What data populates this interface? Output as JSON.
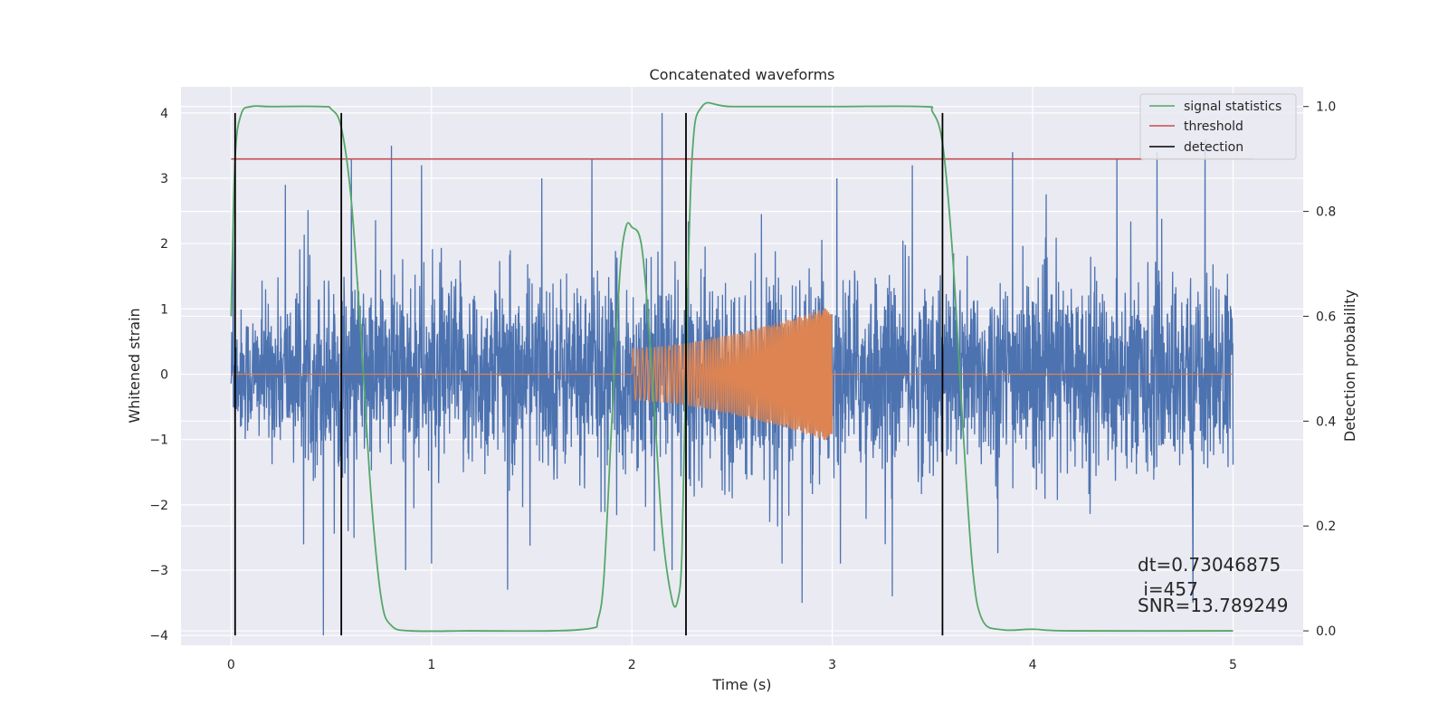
{
  "chart_data": {
    "type": "line",
    "title": "Concatenated waveforms",
    "xlabel": "Time (s)",
    "ylabel": "Whitened strain",
    "y2label": "Detection probability",
    "xlim": [
      -0.25,
      5.35
    ],
    "ylim": [
      -4.15,
      4.4
    ],
    "y2lim": [
      -0.0275,
      1.0375
    ],
    "x_ticks": [
      0,
      1,
      2,
      3,
      4,
      5
    ],
    "x_tick_labels": [
      "0",
      "1",
      "2",
      "3",
      "4",
      "5"
    ],
    "y_ticks": [
      -4,
      -3,
      -2,
      -1,
      0,
      1,
      2,
      3,
      4
    ],
    "y_tick_labels": [
      "−4",
      "−3",
      "−2",
      "−1",
      "0",
      "1",
      "2",
      "3",
      "4"
    ],
    "y2_ticks": [
      0.0,
      0.2,
      0.4,
      0.6,
      0.8,
      1.0
    ],
    "y2_tick_labels": [
      "0.0",
      "0.2",
      "0.4",
      "0.6",
      "0.8",
      "1.0"
    ],
    "grid": true,
    "legend_position": "top-right",
    "colors": {
      "background": "#eaeaf2",
      "grid": "#ffffff",
      "strain": "#4c72b0",
      "template": "#dd8452",
      "signal_statistics": "#55a868",
      "threshold": "#c44e52",
      "detection": "#000000"
    },
    "series": [
      {
        "key": "strain",
        "axis": "left",
        "range": [
          0,
          5
        ],
        "envelope_points": [
          [
            0,
            0.9
          ],
          [
            0.5,
            1.4
          ],
          [
            1,
            1.4
          ],
          [
            1.5,
            1.4
          ],
          [
            2,
            1.4
          ],
          [
            2.5,
            1.4
          ],
          [
            3,
            1.4
          ],
          [
            3.5,
            1.4
          ],
          [
            4,
            1.4
          ],
          [
            4.5,
            1.4
          ],
          [
            5,
            1.4
          ]
        ],
        "peaks": [
          [
            0.01,
            2.25
          ],
          [
            0.27,
            2.9
          ],
          [
            0.46,
            -4.0
          ],
          [
            0.6,
            3.3
          ],
          [
            0.8,
            3.5
          ],
          [
            0.95,
            3.2
          ],
          [
            1.0,
            -2.9
          ],
          [
            1.38,
            -3.3
          ],
          [
            1.55,
            3.0
          ],
          [
            1.8,
            3.3
          ],
          [
            2.15,
            4.0
          ],
          [
            2.2,
            -3.0
          ],
          [
            2.75,
            -2.9
          ],
          [
            2.85,
            -3.5
          ],
          [
            3.04,
            -2.9
          ],
          [
            3.3,
            -3.4
          ],
          [
            3.4,
            3.2
          ],
          [
            3.9,
            3.4
          ],
          [
            4.42,
            3.3
          ],
          [
            4.62,
            3.4
          ],
          [
            4.8,
            -3.5
          ],
          [
            4.86,
            3.6
          ]
        ]
      },
      {
        "key": "template",
        "axis": "left",
        "range": [
          0,
          5
        ],
        "chirp_start": 2.0,
        "chirp_end": 3.0,
        "amplitude_start": 0.4,
        "amplitude_end": 1.05
      },
      {
        "name": "signal statistics",
        "key": "signal_statistics",
        "axis": "right",
        "x": [
          0,
          0.02,
          0.05,
          0.1,
          0.2,
          0.45,
          0.5,
          0.55,
          0.6,
          0.65,
          0.7,
          0.75,
          0.8,
          0.9,
          1.2,
          1.6,
          1.8,
          1.83,
          1.86,
          1.9,
          1.94,
          1.97,
          2.0,
          2.05,
          2.1,
          2.15,
          2.2,
          2.23,
          2.25,
          2.27,
          2.3,
          2.35,
          2.5,
          3.0,
          3.45,
          3.5,
          3.55,
          3.6,
          3.65,
          3.7,
          3.75,
          3.85,
          4.0,
          4.2,
          5.0
        ],
        "values": [
          0.6,
          0.9,
          0.985,
          1.0,
          1.0,
          1.0,
          0.995,
          0.96,
          0.82,
          0.55,
          0.25,
          0.06,
          0.01,
          0.0,
          0.0,
          0.0,
          0.005,
          0.02,
          0.1,
          0.4,
          0.68,
          0.77,
          0.77,
          0.73,
          0.5,
          0.2,
          0.06,
          0.06,
          0.15,
          0.5,
          0.9,
          1.0,
          1.0,
          1.0,
          1.0,
          0.99,
          0.93,
          0.72,
          0.4,
          0.12,
          0.02,
          0.002,
          0.003,
          0.0,
          0.0
        ]
      },
      {
        "name": "threshold",
        "key": "threshold",
        "axis": "right",
        "x": [
          0,
          5.1
        ],
        "values": [
          0.9,
          0.9
        ]
      },
      {
        "name": "detection",
        "key": "detection",
        "axis": "left",
        "x": [
          0.02,
          0.55,
          2.27,
          3.55
        ],
        "y_range": [
          -4,
          4
        ]
      }
    ],
    "annotations": [
      "dt=0.73046875",
      " i=457",
      "SNR=13.789249"
    ]
  }
}
